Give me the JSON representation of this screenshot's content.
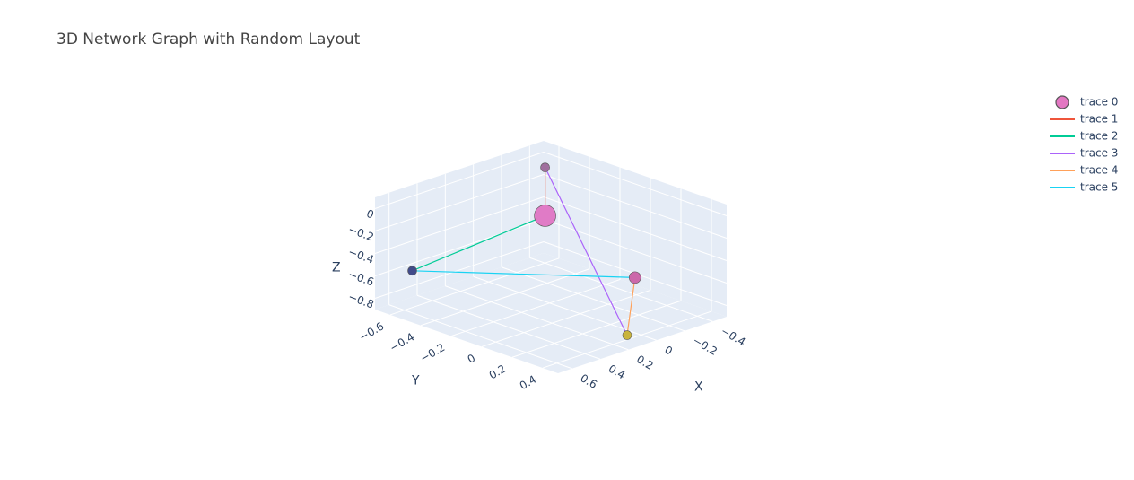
{
  "chart_data": {
    "type": "scatter3d",
    "title": "3D Network Graph with Random Layout",
    "xlabel": "X",
    "ylabel": "Y",
    "zlabel": "Z",
    "xlim": [
      -0.5,
      0.7
    ],
    "ylim": [
      -0.7,
      0.5
    ],
    "zlim": [
      -0.9,
      0.1
    ],
    "xticks": [
      {
        "value": -0.4,
        "label": "−0.4"
      },
      {
        "value": -0.2,
        "label": "−0.2"
      },
      0,
      0.2,
      0.4,
      0.6
    ],
    "yticks": [
      {
        "value": -0.6,
        "label": "−0.6"
      },
      {
        "value": -0.4,
        "label": "−0.4"
      },
      {
        "value": -0.2,
        "label": "−0.2"
      },
      0,
      0.2,
      0.4
    ],
    "zticks": [
      {
        "value": -0.8,
        "label": "−0.8"
      },
      {
        "value": -0.6,
        "label": "−0.6"
      },
      {
        "value": -0.4,
        "label": "−0.4"
      },
      {
        "value": -0.2,
        "label": "−0.2"
      },
      0
    ],
    "grid": true,
    "legend": "top-right",
    "series": [
      {
        "name": "trace 0",
        "mode": "markers",
        "color": "#e377c2",
        "x": [
          -0.38,
          -0.38,
          0.5,
          -0.26,
          0.1
        ],
        "y": [
          -0.58,
          -0.58,
          -0.64,
          0.12,
          0.4
        ],
        "z": [
          -0.03,
          -0.46,
          -0.61,
          -0.63,
          -0.86
        ],
        "sizes": [
          10,
          24,
          10,
          13,
          10
        ],
        "colors": [
          "#a0709e",
          "#e07bc6",
          "#414b8a",
          "#cc68aa",
          "#c9b43c"
        ]
      },
      {
        "name": "trace 1",
        "mode": "lines",
        "color": "#EF553B",
        "x": [
          -0.38,
          -0.38
        ],
        "y": [
          -0.58,
          -0.58
        ],
        "z": [
          -0.03,
          -0.46
        ]
      },
      {
        "name": "trace 2",
        "mode": "lines",
        "color": "#00cc96",
        "x": [
          -0.38,
          0.5
        ],
        "y": [
          -0.58,
          -0.64
        ],
        "z": [
          -0.46,
          -0.61
        ]
      },
      {
        "name": "trace 3",
        "mode": "lines",
        "color": "#ab63fa",
        "x": [
          -0.38,
          0.1
        ],
        "y": [
          -0.58,
          0.4
        ],
        "z": [
          -0.03,
          -0.86
        ]
      },
      {
        "name": "trace 4",
        "mode": "lines",
        "color": "#FFA15A",
        "x": [
          0.1,
          -0.26
        ],
        "y": [
          0.4,
          0.12
        ],
        "z": [
          -0.86,
          -0.63
        ]
      },
      {
        "name": "trace 5",
        "mode": "lines",
        "color": "#19d3f3",
        "x": [
          0.5,
          -0.26
        ],
        "y": [
          -0.64,
          0.12
        ],
        "z": [
          -0.61,
          -0.63
        ]
      }
    ]
  }
}
